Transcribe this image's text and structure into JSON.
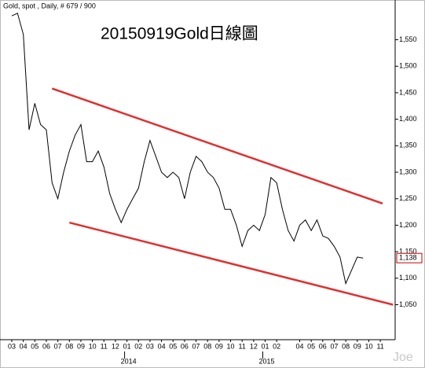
{
  "chart_data": {
    "type": "line",
    "header": "Gold, spot , Daily, # 679 / 900",
    "title": "20150919Gold日線圖",
    "watermark": "Joe",
    "categories": [
      "03",
      null,
      "04",
      null,
      "05",
      null,
      "06",
      null,
      "07",
      null,
      "08",
      null,
      "09",
      null,
      "10",
      null,
      "11",
      null,
      "12",
      null,
      "01",
      null,
      "02",
      null,
      "03",
      null,
      "04",
      null,
      "05",
      null,
      "06",
      null,
      "07",
      null,
      "08",
      null,
      "09",
      null,
      "10",
      null,
      "11",
      null,
      "12",
      null,
      "01",
      null,
      "02",
      null,
      null,
      null,
      "04",
      null,
      "05",
      null,
      "06",
      null,
      "07",
      null,
      "08",
      null,
      "09",
      null,
      "10",
      null,
      "11",
      null
    ],
    "x_groups": [
      {
        "label": "2014",
        "start": 20
      },
      {
        "label": "2015",
        "start": 44
      }
    ],
    "series": [
      {
        "name": "Gold",
        "color": "#000000",
        "values": [
          1595,
          1600,
          1560,
          1380,
          1430,
          1390,
          1380,
          1280,
          1250,
          1300,
          1340,
          1370,
          1390,
          1320,
          1320,
          1340,
          1310,
          1260,
          1230,
          1205,
          1230,
          1250,
          1270,
          1320,
          1360,
          1330,
          1300,
          1290,
          1300,
          1290,
          1250,
          1300,
          1330,
          1320,
          1300,
          1290,
          1270,
          1230,
          1230,
          1200,
          1160,
          1190,
          1200,
          1190,
          1220,
          1290,
          1280,
          1230,
          1190,
          1170,
          1200,
          1210,
          1190,
          1210,
          1180,
          1175,
          1160,
          1140,
          1090,
          1115,
          1140,
          1138,
          null,
          null,
          null,
          null
        ]
      }
    ],
    "last_marker": {
      "value": 1138,
      "label": "1,138",
      "color": "#cc0000"
    },
    "trendlines": [
      {
        "color": "#e03030",
        "x": [
          7,
          64.4
        ],
        "y": [
          1458,
          1241
        ]
      },
      {
        "color": "#e03030",
        "x": [
          10,
          66.2
        ],
        "y": [
          1205,
          1050
        ]
      }
    ],
    "ylim": [
      984,
      1625
    ],
    "yticks": [
      {
        "value": 1050,
        "label": "1,050"
      },
      {
        "value": 1100,
        "label": "1,100"
      },
      {
        "value": 1150,
        "label": "1,150"
      },
      {
        "value": 1200,
        "label": "1,200"
      },
      {
        "value": 1250,
        "label": "1,250"
      },
      {
        "value": 1300,
        "label": "1,300"
      },
      {
        "value": 1350,
        "label": "1,350"
      },
      {
        "value": 1400,
        "label": "1,400"
      },
      {
        "value": 1450,
        "label": "1,450"
      },
      {
        "value": 1500,
        "label": "1,500"
      },
      {
        "value": 1550,
        "label": "1,550"
      }
    ]
  }
}
